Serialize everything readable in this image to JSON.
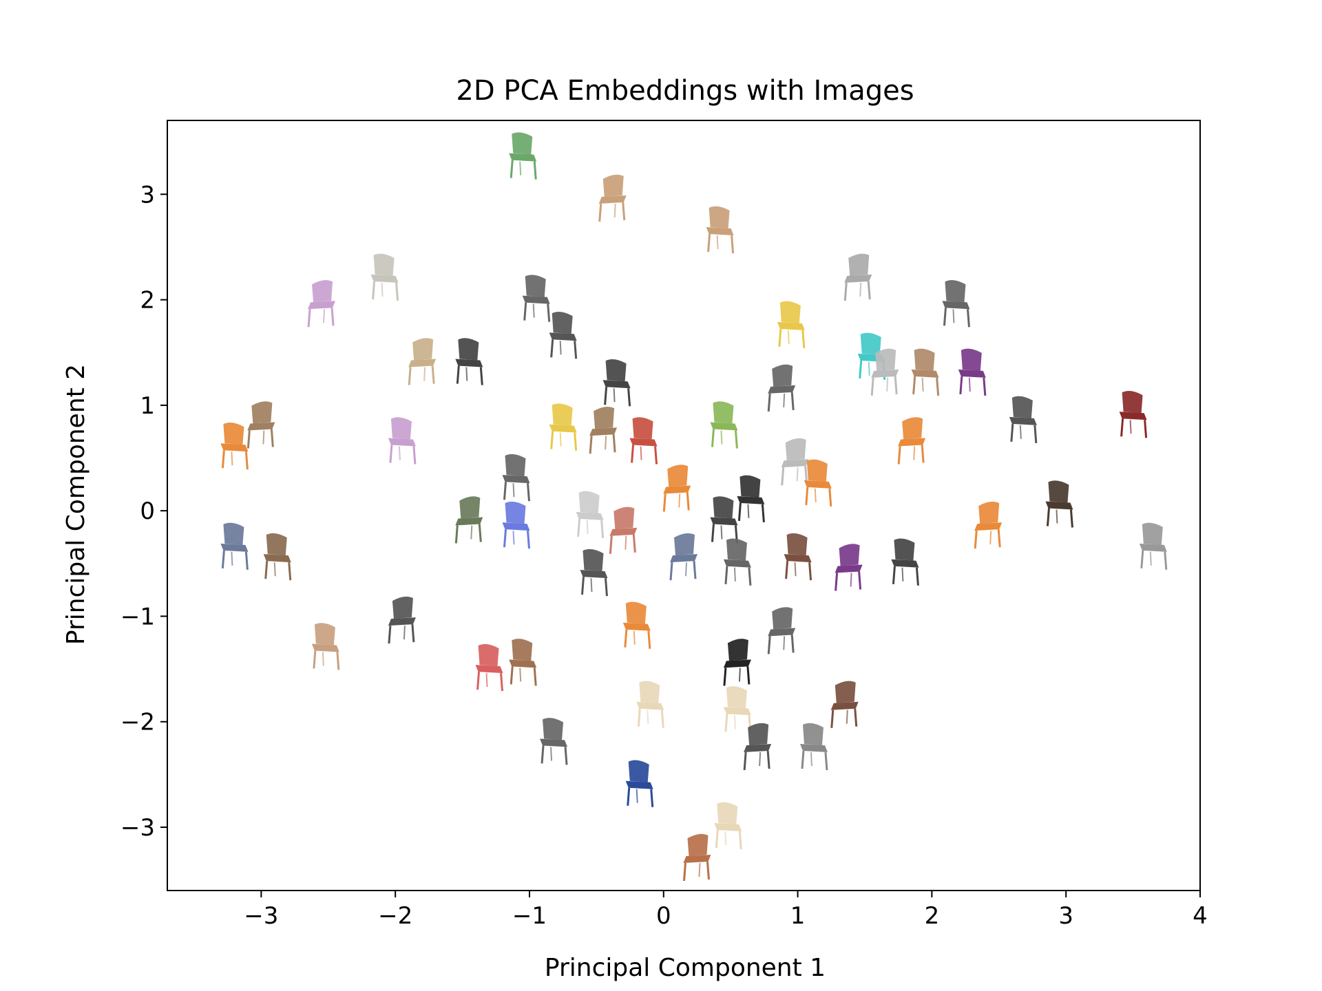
{
  "chart_data": {
    "type": "scatter",
    "title": "2D PCA Embeddings with Images",
    "xlabel": "Principal Component 1",
    "ylabel": "Principal Component 2",
    "xlim": [
      -3.7,
      4.0
    ],
    "ylim": [
      -3.6,
      3.7
    ],
    "xticks": [
      -3,
      -2,
      -1,
      0,
      1,
      2,
      3,
      4
    ],
    "yticks": [
      -3,
      -2,
      -1,
      0,
      1,
      2,
      3
    ],
    "xtick_labels": [
      "−3",
      "−2",
      "−1",
      "0",
      "1",
      "2",
      "3",
      "4"
    ],
    "ytick_labels": [
      "−3",
      "−2",
      "−1",
      "0",
      "1",
      "2",
      "3"
    ],
    "grid": false,
    "legend": "none",
    "marker": "chair thumbnail images",
    "points": [
      {
        "x": -1.05,
        "y": 3.35,
        "color": "#6aa86a"
      },
      {
        "x": -0.38,
        "y": 2.95,
        "color": "#c9a07a"
      },
      {
        "x": 0.42,
        "y": 2.65,
        "color": "#c9a07a"
      },
      {
        "x": -2.08,
        "y": 2.2,
        "color": "#c8c4bc"
      },
      {
        "x": -2.55,
        "y": 1.95,
        "color": "#c8a0d0"
      },
      {
        "x": -0.95,
        "y": 2.0,
        "color": "#666666"
      },
      {
        "x": -0.75,
        "y": 1.65,
        "color": "#555555"
      },
      {
        "x": 1.45,
        "y": 2.2,
        "color": "#aaaaaa"
      },
      {
        "x": 2.18,
        "y": 1.95,
        "color": "#666666"
      },
      {
        "x": 0.95,
        "y": 1.75,
        "color": "#e8c84a"
      },
      {
        "x": -1.8,
        "y": 1.4,
        "color": "#c9b08a"
      },
      {
        "x": -1.45,
        "y": 1.4,
        "color": "#444444"
      },
      {
        "x": 1.55,
        "y": 1.45,
        "color": "#44c8c8"
      },
      {
        "x": 1.65,
        "y": 1.3,
        "color": "#bbbbbb"
      },
      {
        "x": 1.95,
        "y": 1.3,
        "color": "#b08a6a"
      },
      {
        "x": 2.3,
        "y": 1.3,
        "color": "#7a3a8a"
      },
      {
        "x": 0.88,
        "y": 1.15,
        "color": "#666666"
      },
      {
        "x": -0.35,
        "y": 1.2,
        "color": "#444444"
      },
      {
        "x": -3.2,
        "y": 0.6,
        "color": "#e88a3a"
      },
      {
        "x": -3.0,
        "y": 0.8,
        "color": "#a08060"
      },
      {
        "x": -1.95,
        "y": 0.65,
        "color": "#c8a0d0"
      },
      {
        "x": -0.75,
        "y": 0.78,
        "color": "#e8c84a"
      },
      {
        "x": -0.45,
        "y": 0.75,
        "color": "#a08060"
      },
      {
        "x": -0.15,
        "y": 0.65,
        "color": "#c85040"
      },
      {
        "x": 0.45,
        "y": 0.8,
        "color": "#8ab858"
      },
      {
        "x": 1.85,
        "y": 0.65,
        "color": "#e88a3a"
      },
      {
        "x": 2.68,
        "y": 0.85,
        "color": "#555555"
      },
      {
        "x": 3.5,
        "y": 0.9,
        "color": "#8a2a2a"
      },
      {
        "x": 0.98,
        "y": 0.45,
        "color": "#bbbbbb"
      },
      {
        "x": 1.15,
        "y": 0.25,
        "color": "#e88a3a"
      },
      {
        "x": -1.1,
        "y": 0.3,
        "color": "#666666"
      },
      {
        "x": 0.1,
        "y": 0.2,
        "color": "#e88a3a"
      },
      {
        "x": 0.65,
        "y": 0.1,
        "color": "#333333"
      },
      {
        "x": 2.95,
        "y": 0.05,
        "color": "#4a3a30"
      },
      {
        "x": 2.42,
        "y": -0.15,
        "color": "#e88a3a"
      },
      {
        "x": -3.2,
        "y": -0.35,
        "color": "#6a7a9a"
      },
      {
        "x": -2.88,
        "y": -0.45,
        "color": "#8a6a50"
      },
      {
        "x": -1.45,
        "y": -0.1,
        "color": "#6a7a5a"
      },
      {
        "x": -1.1,
        "y": -0.15,
        "color": "#6a7ae0"
      },
      {
        "x": -0.55,
        "y": -0.05,
        "color": "#cccccc"
      },
      {
        "x": -0.3,
        "y": -0.2,
        "color": "#c87a6a"
      },
      {
        "x": 0.45,
        "y": -0.1,
        "color": "#444444"
      },
      {
        "x": 3.65,
        "y": -0.35,
        "color": "#999999"
      },
      {
        "x": 0.15,
        "y": -0.45,
        "color": "#6a7a9a"
      },
      {
        "x": 0.55,
        "y": -0.5,
        "color": "#666666"
      },
      {
        "x": 1.0,
        "y": -0.45,
        "color": "#7a5040"
      },
      {
        "x": 1.38,
        "y": -0.55,
        "color": "#7a3a8a"
      },
      {
        "x": 1.8,
        "y": -0.5,
        "color": "#444444"
      },
      {
        "x": -0.52,
        "y": -0.6,
        "color": "#555555"
      },
      {
        "x": -1.95,
        "y": -1.05,
        "color": "#555555"
      },
      {
        "x": -2.52,
        "y": -1.3,
        "color": "#c8a080"
      },
      {
        "x": -0.2,
        "y": -1.1,
        "color": "#e88a3a"
      },
      {
        "x": 0.88,
        "y": -1.15,
        "color": "#666666"
      },
      {
        "x": -1.05,
        "y": -1.45,
        "color": "#a07050"
      },
      {
        "x": -1.3,
        "y": -1.5,
        "color": "#d86060"
      },
      {
        "x": 0.55,
        "y": -1.45,
        "color": "#222222"
      },
      {
        "x": -0.1,
        "y": -1.85,
        "color": "#e8d8b8"
      },
      {
        "x": 0.55,
        "y": -1.9,
        "color": "#e8d8b8"
      },
      {
        "x": 1.35,
        "y": -1.85,
        "color": "#7a5040"
      },
      {
        "x": -0.82,
        "y": -2.2,
        "color": "#666666"
      },
      {
        "x": 1.12,
        "y": -2.25,
        "color": "#888888"
      },
      {
        "x": 0.7,
        "y": -2.25,
        "color": "#555555"
      },
      {
        "x": -0.18,
        "y": -2.6,
        "color": "#2a4a9a"
      },
      {
        "x": 0.48,
        "y": -3.0,
        "color": "#e8d8b8"
      },
      {
        "x": 0.25,
        "y": -3.3,
        "color": "#b8704a"
      }
    ]
  }
}
